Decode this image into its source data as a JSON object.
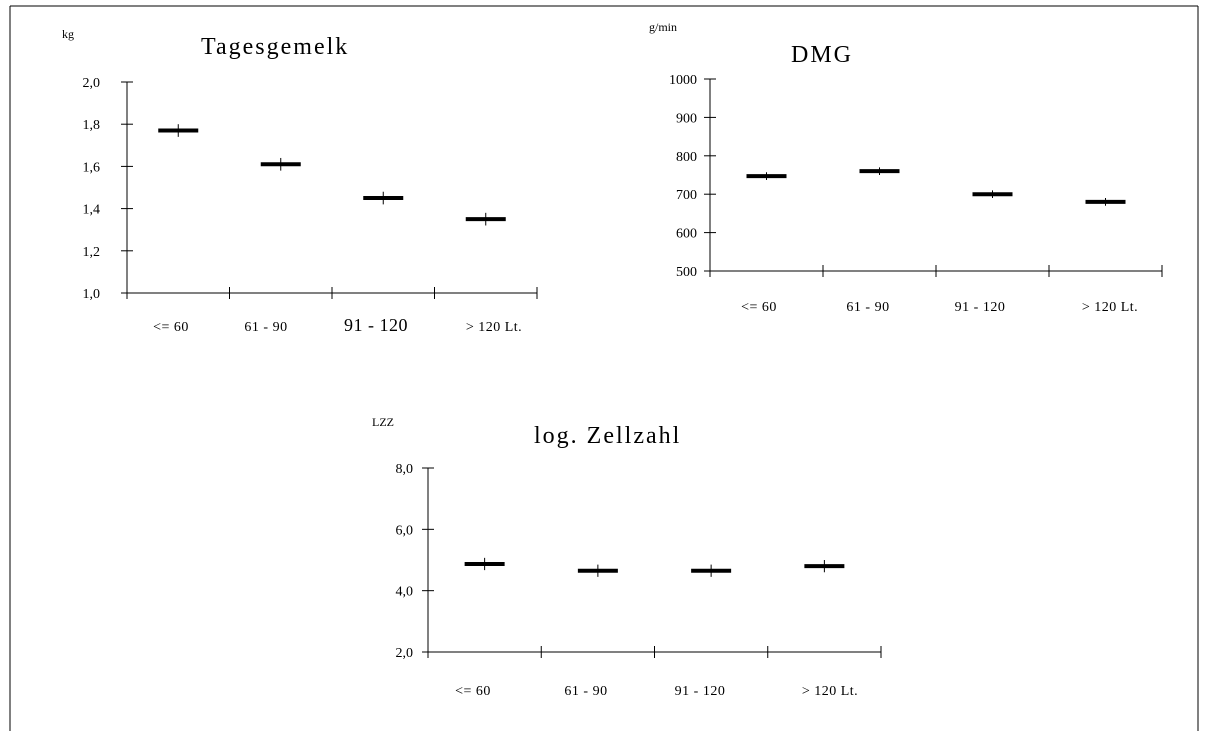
{
  "chart_data": [
    {
      "type": "scatter",
      "title": "Tagesgemelk",
      "ylabel": "kg",
      "categories": [
        "<= 60",
        "61 - 90",
        "91 - 120",
        "> 120  Lt."
      ],
      "values": [
        1.77,
        1.61,
        1.45,
        1.35
      ],
      "error": [
        0.03,
        0.03,
        0.03,
        0.03
      ],
      "ylim": [
        1.0,
        2.0
      ],
      "yticks": [
        "1,0",
        "1,2",
        "1,4",
        "1,6",
        "1,8",
        "2,0"
      ],
      "ytick_values": [
        1.0,
        1.2,
        1.4,
        1.6,
        1.8,
        2.0
      ],
      "grid": false,
      "legend": "none"
    },
    {
      "type": "scatter",
      "title": "DMG",
      "ylabel": "g/min",
      "categories": [
        "<= 60",
        "61 - 90",
        "91 - 120",
        "> 120  Lt."
      ],
      "values": [
        747,
        760,
        700,
        680
      ],
      "error": [
        10,
        10,
        10,
        10
      ],
      "ylim": [
        500,
        1000
      ],
      "yticks": [
        "500",
        "600",
        "700",
        "800",
        "900",
        "1000"
      ],
      "ytick_values": [
        500,
        600,
        700,
        800,
        900,
        1000
      ],
      "grid": false,
      "legend": "none"
    },
    {
      "type": "scatter",
      "title": "log. Zellzahl",
      "ylabel": "LZZ",
      "categories": [
        "<= 60",
        "61 - 90",
        "91 - 120",
        "> 120  Lt."
      ],
      "values": [
        4.87,
        4.65,
        4.65,
        4.8
      ],
      "error": [
        0.2,
        0.2,
        0.2,
        0.2
      ],
      "ylim": [
        2.0,
        8.0
      ],
      "yticks": [
        "2,0",
        "4,0",
        "6,0",
        "8,0"
      ],
      "ytick_values": [
        2.0,
        4.0,
        6.0,
        8.0
      ],
      "grid": false,
      "legend": "none"
    }
  ]
}
